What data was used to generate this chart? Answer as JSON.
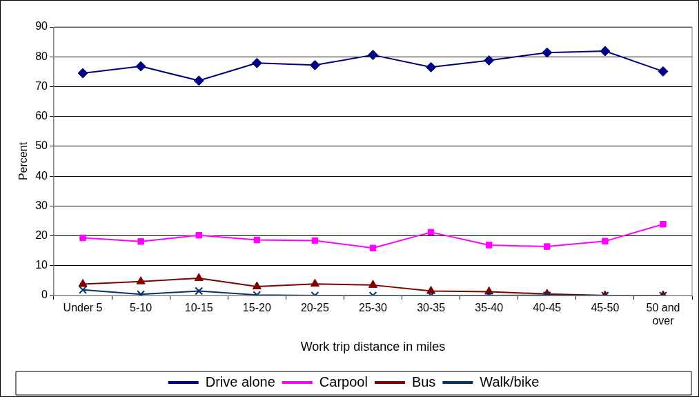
{
  "chart_data": {
    "type": "line",
    "xlabel": "Work trip distance in miles",
    "ylabel": "Percent",
    "categories": [
      "Under 5",
      "5-10",
      "10-15",
      "15-20",
      "20-25",
      "25-30",
      "30-35",
      "35-40",
      "40-45",
      "45-50",
      "50 and over"
    ],
    "series": [
      {
        "name": "Drive alone",
        "color": "#000080",
        "marker": "diamond",
        "values": [
          74.5,
          76.8,
          72,
          77.9,
          77.2,
          80.6,
          76.5,
          78.8,
          81.4,
          81.9,
          75.1
        ]
      },
      {
        "name": "Carpool",
        "color": "#ff00ff",
        "marker": "square",
        "values": [
          19.3,
          18.1,
          20.2,
          18.6,
          18.4,
          15.9,
          21.2,
          16.9,
          16.4,
          18.2,
          23.9
        ]
      },
      {
        "name": "Bus",
        "color": "#800000",
        "marker": "triangle",
        "values": [
          3.8,
          4.7,
          5.8,
          3.0,
          3.9,
          3.5,
          1.5,
          1.3,
          0.5,
          0,
          0
        ]
      },
      {
        "name": "Walk/bike",
        "color": "#003366",
        "marker": "cross",
        "values": [
          1.9,
          0.4,
          1.5,
          0.2,
          0,
          0,
          0,
          0,
          0.1,
          0,
          0
        ]
      }
    ],
    "ylim": [
      0,
      90
    ],
    "yticks": [
      0,
      10,
      20,
      30,
      40,
      50,
      60,
      70,
      80,
      90
    ],
    "grid": "y",
    "legend": "bottom"
  }
}
